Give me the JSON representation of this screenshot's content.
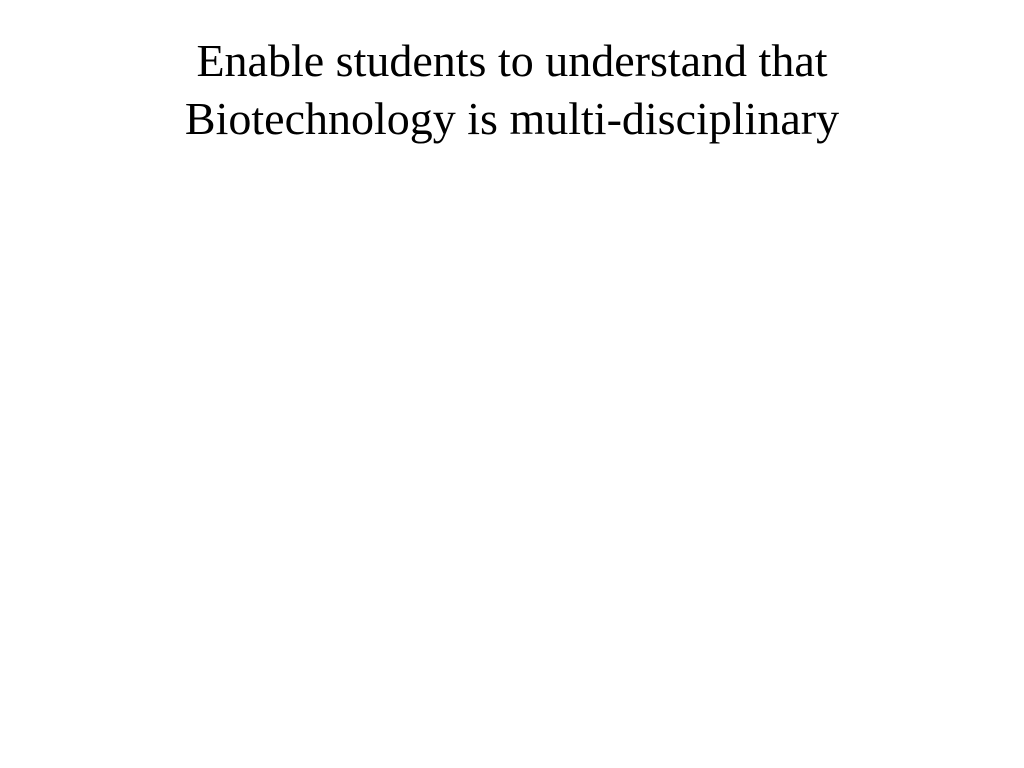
{
  "slide": {
    "title_line1": "Enable students to understand  that",
    "title_line2": "Biotechnology is multi-disciplinary",
    "background_color": "#ffffff",
    "text_color": "#000000",
    "font_family": "Times New Roman",
    "title_fontsize": 46,
    "title_fontweight": 400
  }
}
